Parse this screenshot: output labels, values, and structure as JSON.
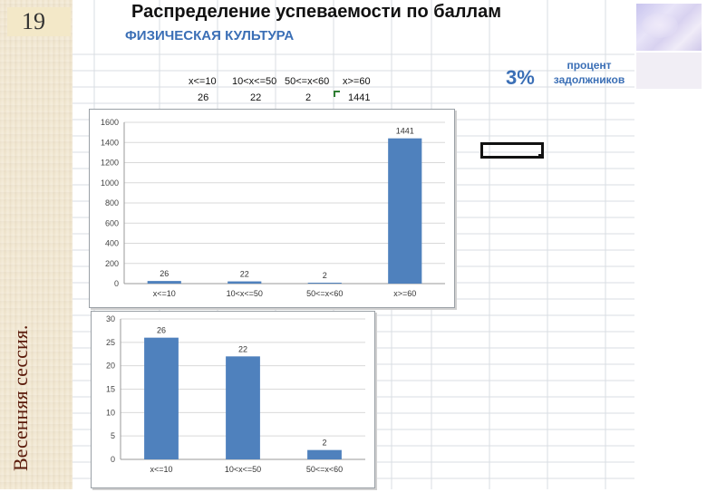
{
  "slide": {
    "number": "19",
    "side_caption": "Весенняя сессия."
  },
  "header": {
    "title": "Распределение успеваемости по баллам",
    "subtitle": "ФИЗИЧЕСКАЯ КУЛЬТУРА",
    "debtors_percent": "3%",
    "debtors_label_line1": "процент",
    "debtors_label_line2": "задолжников"
  },
  "table": {
    "headers": [
      "x<=10",
      "10<x<=50",
      "50<=x<60",
      "x>=60"
    ],
    "values": [
      "26",
      "22",
      "2",
      "1441"
    ]
  },
  "colors": {
    "bar": "#4f81bd",
    "title_blue": "#3b6fb6"
  },
  "chart_data": [
    {
      "type": "bar",
      "categories": [
        "x<=10",
        "10<x<=50",
        "50<=x<60",
        "x>=60"
      ],
      "values": [
        26,
        22,
        2,
        1441
      ],
      "data_labels": [
        "26",
        "22",
        "2",
        "1441"
      ],
      "yticks": [
        "0",
        "200",
        "400",
        "600",
        "800",
        "1000",
        "1200",
        "1400",
        "1600"
      ],
      "ylim": [
        0,
        1600
      ],
      "grid": true,
      "legend": "none"
    },
    {
      "type": "bar",
      "categories": [
        "x<=10",
        "10<x<=50",
        "50<=x<60"
      ],
      "values": [
        26,
        22,
        2
      ],
      "data_labels": [
        "26",
        "22",
        "2"
      ],
      "yticks": [
        "0",
        "5",
        "10",
        "15",
        "20",
        "25",
        "30"
      ],
      "ylim": [
        0,
        30
      ],
      "grid": true,
      "legend": "none"
    }
  ]
}
